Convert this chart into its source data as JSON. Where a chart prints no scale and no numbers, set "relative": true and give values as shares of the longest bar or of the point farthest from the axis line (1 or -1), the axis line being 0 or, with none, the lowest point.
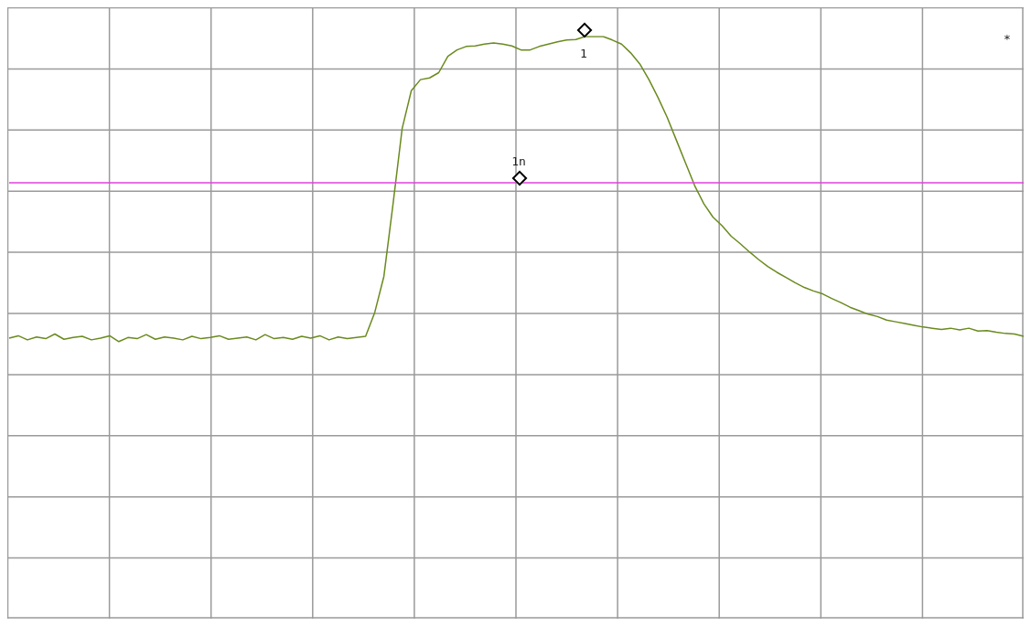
{
  "chart_data": {
    "type": "line",
    "relative": true,
    "grid": true,
    "marker": "none",
    "line_style": "solid",
    "categories": [
      null,
      null,
      null,
      null,
      null,
      null,
      null,
      null,
      null,
      null,
      null,
      null,
      null,
      null,
      null,
      null,
      null,
      null,
      null,
      null,
      null,
      null,
      null,
      null,
      null,
      null,
      null,
      null,
      null,
      null,
      null,
      null,
      null,
      null,
      null,
      null,
      null,
      null,
      null,
      null,
      null,
      null,
      null,
      null,
      null,
      null,
      null,
      null,
      null,
      null,
      null,
      null,
      null,
      null,
      null,
      null,
      null,
      null,
      null,
      null,
      null,
      null,
      null,
      null,
      null,
      null,
      null,
      null,
      null,
      null,
      null,
      null,
      null,
      null,
      null,
      null,
      null,
      null,
      null,
      null,
      null,
      null,
      null,
      null,
      null,
      null,
      null,
      null,
      null,
      null,
      null,
      null,
      null,
      null,
      null,
      null,
      null,
      null,
      null,
      null,
      null,
      null,
      null,
      null,
      null,
      null,
      null,
      null,
      null,
      null,
      null,
      null
    ],
    "series": [
      {
        "color": "#6a8a1e",
        "values": [
          0.482,
          0.486,
          0.479,
          0.484,
          0.481,
          0.489,
          0.48,
          0.483,
          0.485,
          0.479,
          0.482,
          0.486,
          0.476,
          0.483,
          0.481,
          0.488,
          0.48,
          0.484,
          0.482,
          0.479,
          0.485,
          0.481,
          0.483,
          0.486,
          0.48,
          0.482,
          0.484,
          0.479,
          0.488,
          0.481,
          0.483,
          0.48,
          0.485,
          0.482,
          0.486,
          0.479,
          0.484,
          0.481,
          0.483,
          0.485,
          0.526,
          0.588,
          0.712,
          0.842,
          0.907,
          0.926,
          0.929,
          0.938,
          0.966,
          0.977,
          0.983,
          0.984,
          0.987,
          0.989,
          0.987,
          0.984,
          0.977,
          0.977,
          0.983,
          0.987,
          0.991,
          0.994,
          0.995,
          1.0,
          1.0,
          1.0,
          0.994,
          0.987,
          0.972,
          0.953,
          0.926,
          0.895,
          0.861,
          0.822,
          0.783,
          0.744,
          0.713,
          0.69,
          0.675,
          0.657,
          0.644,
          0.63,
          0.617,
          0.605,
          0.595,
          0.586,
          0.577,
          0.569,
          0.563,
          0.558,
          0.55,
          0.543,
          0.535,
          0.529,
          0.523,
          0.519,
          0.513,
          0.51,
          0.507,
          0.504,
          0.501,
          0.499,
          0.497,
          0.499,
          0.496,
          0.499,
          0.494,
          0.495,
          0.492,
          0.49,
          0.489,
          0.485
        ]
      }
    ],
    "ref_lines": [
      {
        "axis": "y",
        "value": 0.749,
        "color": "#e040e0"
      }
    ],
    "annotations": [
      "1",
      "1n",
      "*"
    ]
  }
}
